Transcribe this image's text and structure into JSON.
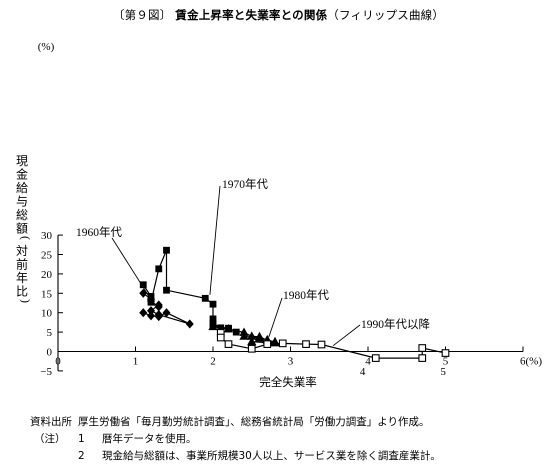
{
  "title": {
    "figure_label": "〔第９図〕",
    "main": "賃金上昇率と失業率との関係",
    "sub": "（フィリップス曲線）"
  },
  "chart_data": {
    "type": "scatter",
    "ylabel_unit": "(%)",
    "xlabel_unit": "(%)",
    "ylabel": "現金給与総額(対前年比)",
    "xlabel": "完全失業率",
    "xlim": [
      0,
      6
    ],
    "ylim": [
      -5,
      30
    ],
    "xticks": [
      0,
      1,
      2,
      3,
      4,
      5,
      6
    ],
    "yticks": [
      -5,
      0,
      5,
      10,
      15,
      20,
      25,
      30
    ],
    "grid": false,
    "series": [
      {
        "name": "1960年代",
        "marker": "diamond-filled",
        "points": [
          [
            1.1,
            10.0
          ],
          [
            1.2,
            9.2
          ],
          [
            1.3,
            9.0
          ],
          [
            1.4,
            10.0
          ],
          [
            1.7,
            7.1
          ],
          [
            1.3,
            9.5
          ],
          [
            1.2,
            10.5
          ],
          [
            1.3,
            12.0
          ],
          [
            1.3,
            11.5
          ],
          [
            1.2,
            13.0
          ],
          [
            1.2,
            13.5
          ],
          [
            1.1,
            15.0
          ]
        ]
      },
      {
        "name": "1970年代",
        "marker": "square-filled",
        "points": [
          [
            1.1,
            17.2
          ],
          [
            1.2,
            14.2
          ],
          [
            1.2,
            12.7
          ],
          [
            1.3,
            21.3
          ],
          [
            1.4,
            26.1
          ],
          [
            1.4,
            15.8
          ],
          [
            1.9,
            13.7
          ],
          [
            2.0,
            12.2
          ],
          [
            2.0,
            8.4
          ],
          [
            2.0,
            7.2
          ],
          [
            2.1,
            6.1
          ],
          [
            2.2,
            5.8
          ],
          [
            2.0,
            6.5
          ],
          [
            2.2,
            6.0
          ],
          [
            2.3,
            5.0
          ]
        ]
      },
      {
        "name": "1980年代",
        "marker": "triangle-filled",
        "points": [
          [
            2.0,
            6.4
          ],
          [
            2.2,
            5.8
          ],
          [
            2.4,
            4.9
          ],
          [
            2.5,
            3.9
          ],
          [
            2.6,
            3.8
          ],
          [
            2.7,
            2.9
          ],
          [
            2.8,
            2.5
          ],
          [
            2.5,
            2.5
          ],
          [
            2.8,
            2.2
          ],
          [
            2.7,
            3.0
          ],
          [
            2.6,
            3.5
          ],
          [
            2.4,
            3.9
          ]
        ]
      },
      {
        "name": "1990年代以降",
        "marker": "square-open",
        "points": [
          [
            2.1,
            4.8
          ],
          [
            2.1,
            3.6
          ],
          [
            2.2,
            1.9
          ],
          [
            2.5,
            0.7
          ],
          [
            2.7,
            1.9
          ],
          [
            2.9,
            2.1
          ],
          [
            3.2,
            1.9
          ],
          [
            3.4,
            1.8
          ],
          [
            4.1,
            -1.7
          ],
          [
            4.7,
            -1.7
          ],
          [
            4.7,
            0.9
          ],
          [
            5.0,
            -0.4
          ]
        ]
      }
    ],
    "annotations": [
      "4",
      "5"
    ]
  },
  "notes": {
    "source_label": "資料出所",
    "source_text": "厚生労働省「毎月勤労統計調査」、総務省統計局「労働力調査」より作成。",
    "notes_label": "（注）",
    "items": [
      {
        "num": "1",
        "text": "暦年データを使用。"
      },
      {
        "num": "2",
        "text": "現金給与総額は、事業所規模30人以上、サービス業を除く調査産業計。"
      }
    ]
  }
}
